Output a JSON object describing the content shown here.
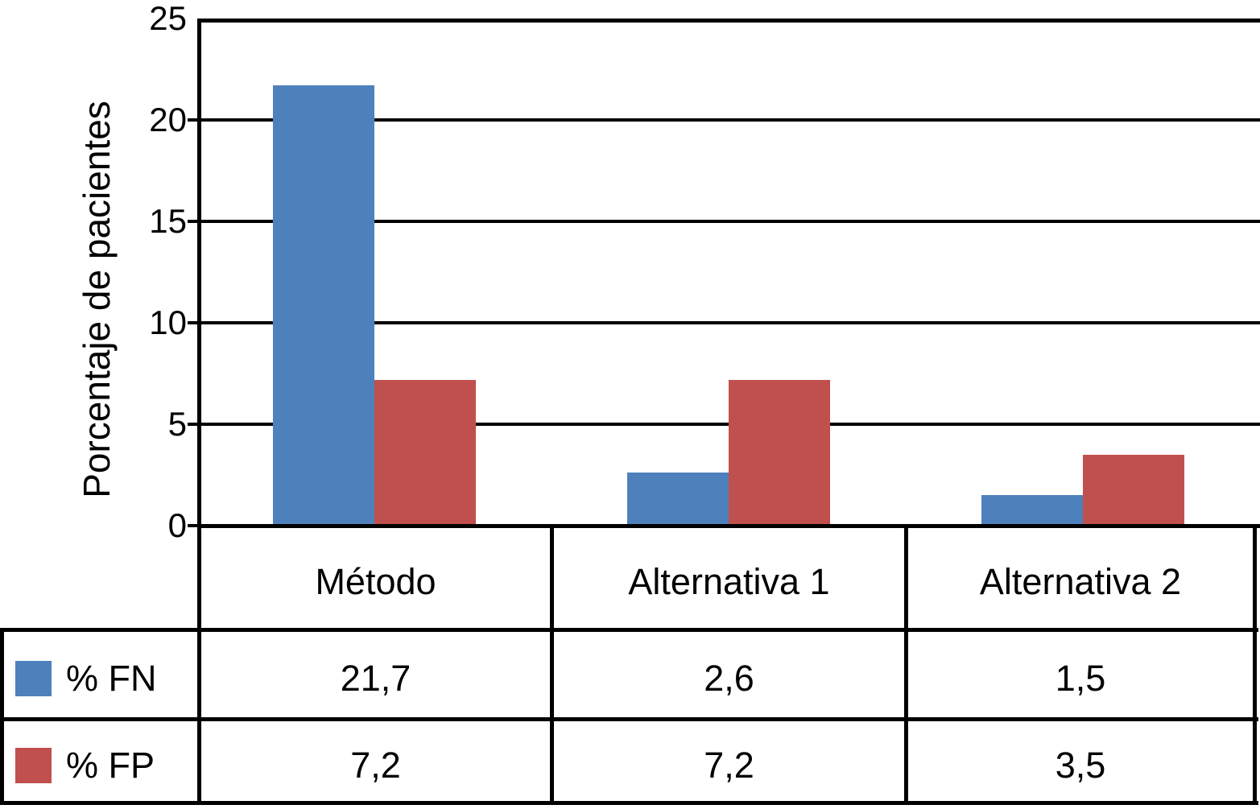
{
  "chart_data": {
    "type": "bar",
    "title": "",
    "xlabel": "",
    "ylabel": "Porcentaje de pacientes",
    "categories": [
      "Método",
      "Alternativa 1",
      "Alternativa 2"
    ],
    "series": [
      {
        "name": "% FN",
        "color": "#4E81BC",
        "values": [
          21.7,
          2.6,
          1.5
        ],
        "display_values": [
          "21,7",
          "2,6",
          "1,5"
        ]
      },
      {
        "name": "% FP",
        "color": "#C0504D",
        "values": [
          7.2,
          7.2,
          3.5
        ],
        "display_values": [
          "7,2",
          "7,2",
          "3,5"
        ]
      }
    ],
    "ylim": [
      0,
      25
    ],
    "yticks": [
      25,
      20,
      15,
      10,
      5,
      0
    ],
    "ytick_labels": [
      "25",
      "20",
      "15",
      "10",
      "5",
      "0"
    ],
    "decimal_separator": ",",
    "grid": true,
    "legend_position": "table-left"
  },
  "colors": {
    "axis": "#000000",
    "background": "#FFFFFF",
    "series_fn": "#4E81BC",
    "series_fp": "#C0504D"
  }
}
